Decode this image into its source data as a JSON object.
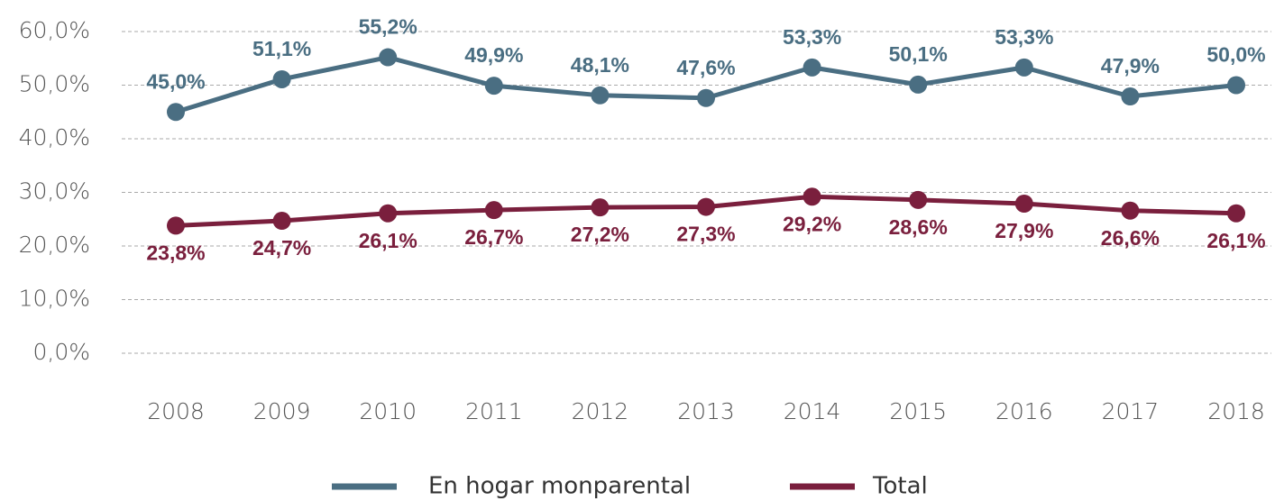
{
  "chart_data": {
    "type": "line",
    "categories": [
      "2008",
      "2009",
      "2010",
      "2011",
      "2012",
      "2013",
      "2014",
      "2015",
      "2016",
      "2017",
      "2018"
    ],
    "series": [
      {
        "name": "En hogar monparental",
        "color": "#4a6e82",
        "values": [
          45.0,
          51.1,
          55.2,
          49.9,
          48.1,
          47.6,
          53.3,
          50.1,
          53.3,
          47.9,
          50.0
        ],
        "value_labels": [
          "45,0%",
          "51,1%",
          "55,2%",
          "49,9%",
          "48,1%",
          "47,6%",
          "53,3%",
          "50,1%",
          "53,3%",
          "47,9%",
          "50,0%"
        ]
      },
      {
        "name": "Total",
        "color": "#7a1f3d",
        "values": [
          23.8,
          24.7,
          26.1,
          26.7,
          27.2,
          27.3,
          29.2,
          28.6,
          27.9,
          26.6,
          26.1
        ],
        "value_labels": [
          "23,8%",
          "24,7%",
          "26,1%",
          "26,7%",
          "27,2%",
          "27,3%",
          "29,2%",
          "28,6%",
          "27,9%",
          "26,6%",
          "26,1%"
        ]
      }
    ],
    "ylim": [
      0,
      60
    ],
    "yticks": [
      {
        "value": 0,
        "label": "0,0%"
      },
      {
        "value": 10,
        "label": "10,0%"
      },
      {
        "value": 20,
        "label": "20,0%"
      },
      {
        "value": 30,
        "label": "30,0%"
      },
      {
        "value": 40,
        "label": "40,0%"
      },
      {
        "value": 50,
        "label": "50,0%"
      },
      {
        "value": 60,
        "label": "60,0%"
      }
    ],
    "grid": true,
    "legend": "bottom"
  }
}
